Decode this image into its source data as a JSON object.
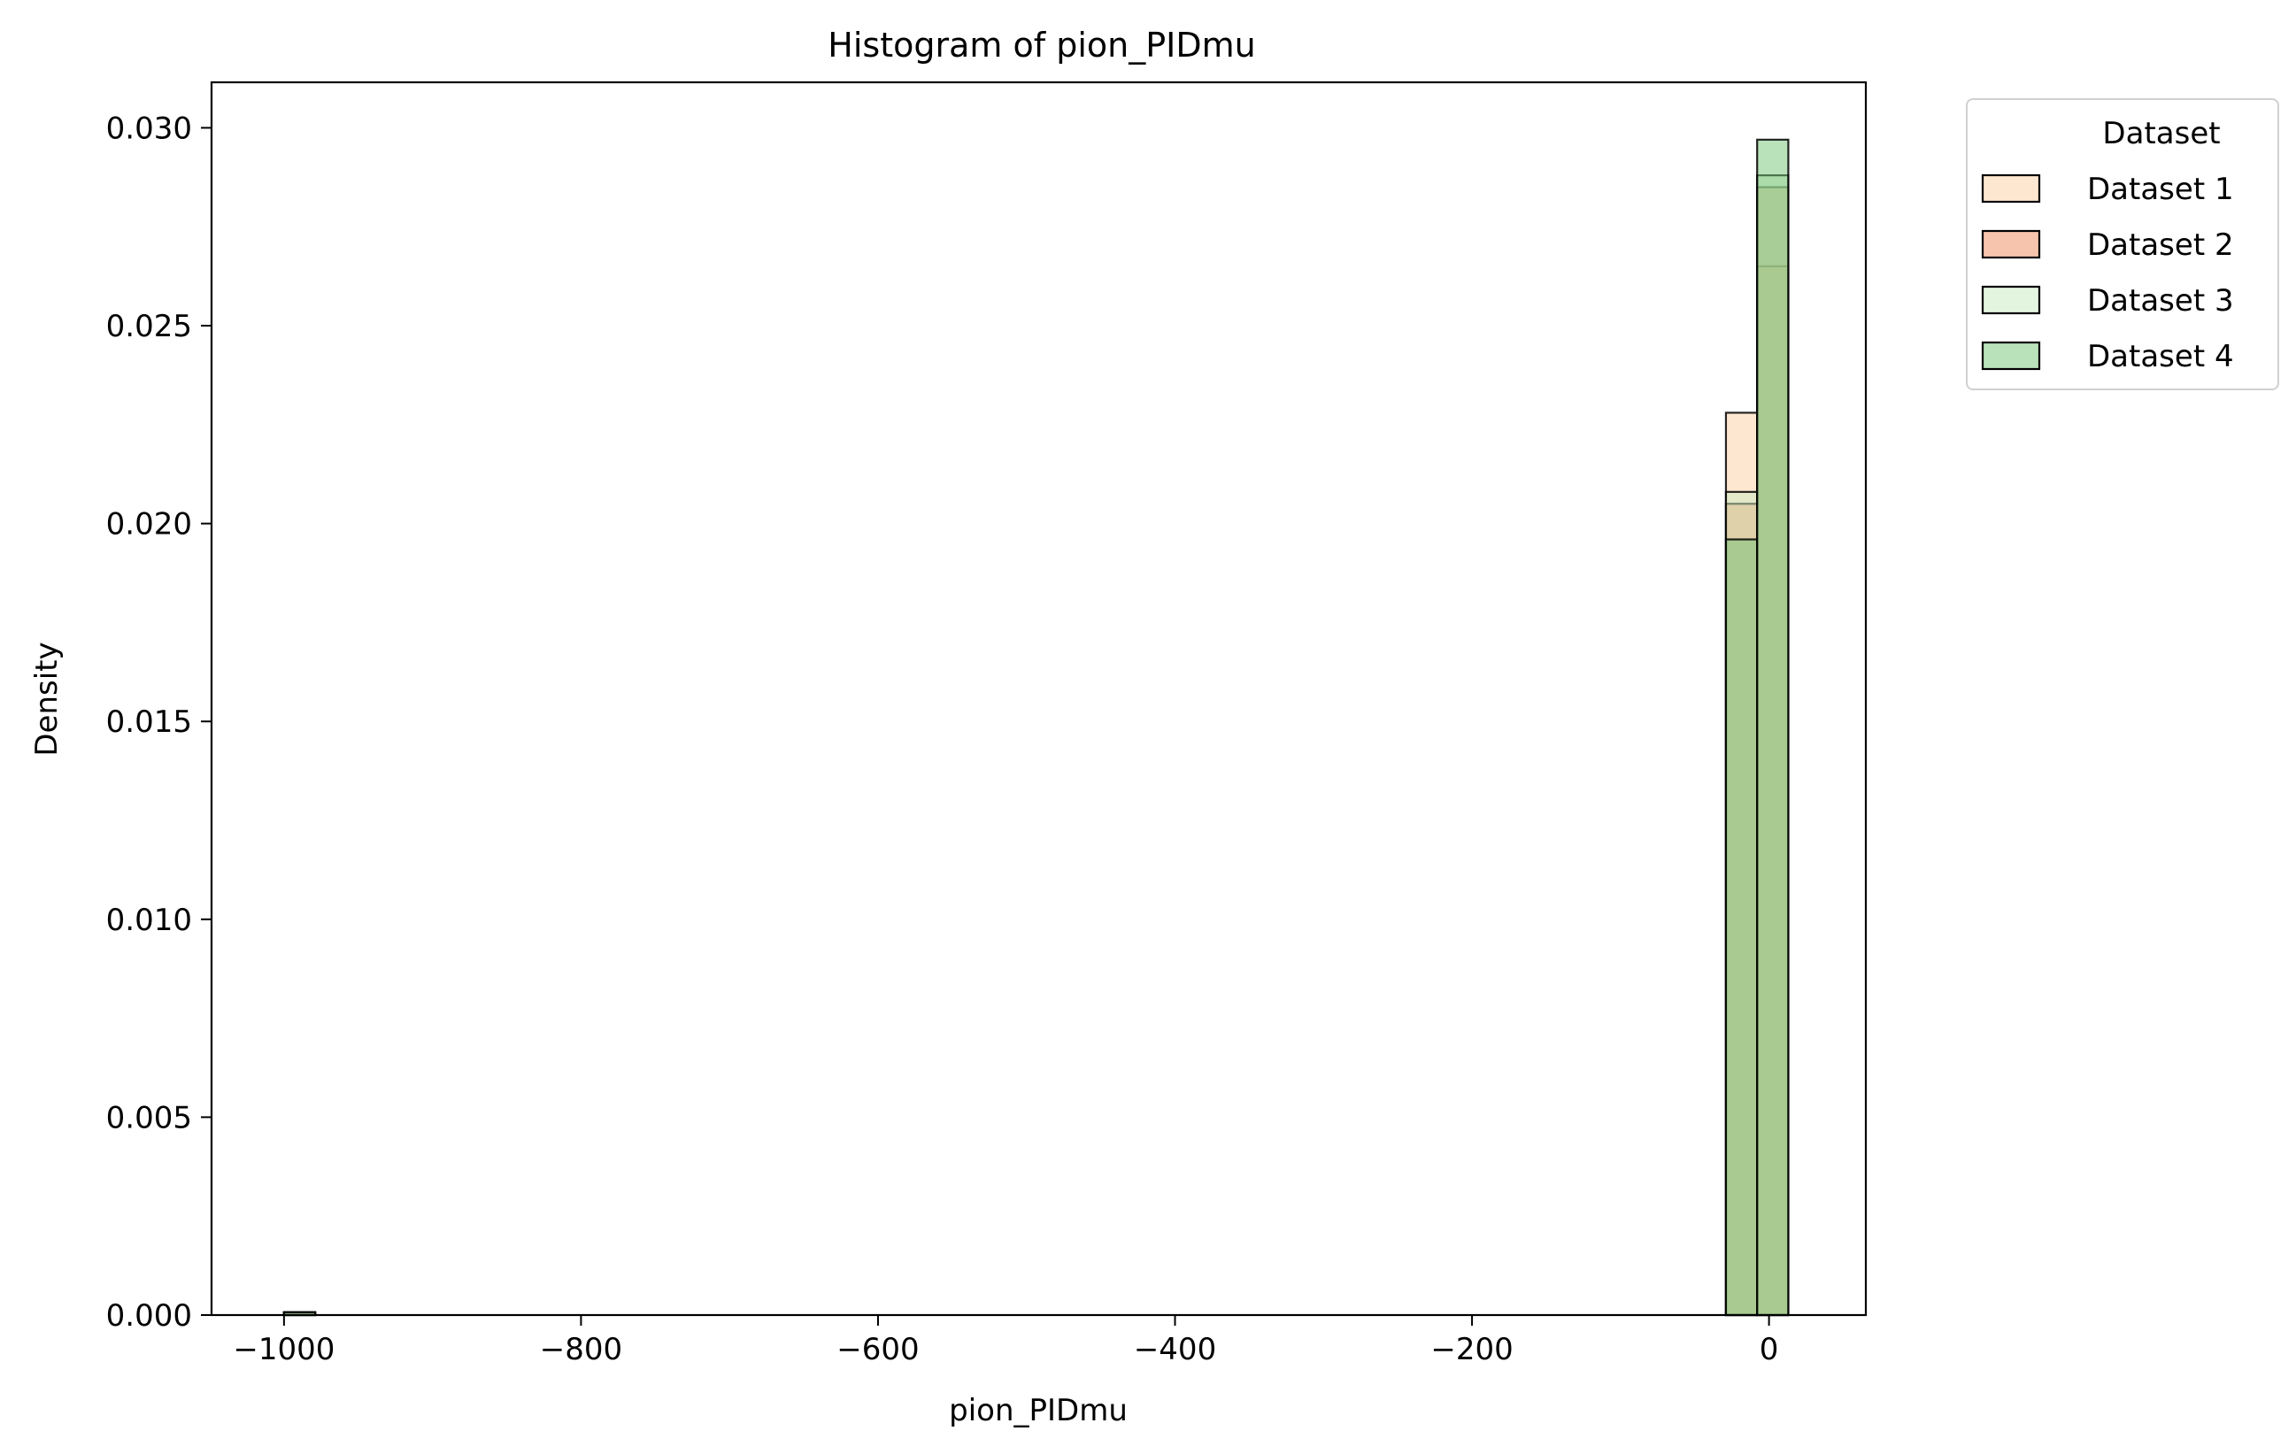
{
  "chart_data": {
    "type": "histogram",
    "title": "Histogram of pion_PIDmu",
    "xlabel": "pion_PIDmu",
    "ylabel": "Density",
    "xlim": [
      -1048.8,
      65.2
    ],
    "ylim": [
      0,
      0.03115
    ],
    "x_ticks": [
      {
        "value": -1000,
        "label": "−1000"
      },
      {
        "value": -800,
        "label": "−800"
      },
      {
        "value": -600,
        "label": "−600"
      },
      {
        "value": -400,
        "label": "−400"
      },
      {
        "value": -200,
        "label": "−200"
      },
      {
        "value": 0,
        "label": "0"
      }
    ],
    "y_ticks": [
      {
        "value": 0.0,
        "label": "0.000"
      },
      {
        "value": 0.005,
        "label": "0.005"
      },
      {
        "value": 0.01,
        "label": "0.010"
      },
      {
        "value": 0.015,
        "label": "0.015"
      },
      {
        "value": 0.02,
        "label": "0.020"
      },
      {
        "value": 0.025,
        "label": "0.025"
      },
      {
        "value": 0.03,
        "label": "0.030"
      }
    ],
    "grid": false,
    "legend": {
      "title": "Dataset",
      "placement": "outside right, top"
    },
    "series": [
      {
        "name": "Dataset 1",
        "color": "#fdd0a2",
        "bins": [
          {
            "x0": -1000,
            "x1": -979,
            "y": 7e-05
          },
          {
            "x0": -29,
            "x1": -8,
            "y": 0.0228
          },
          {
            "x0": -8,
            "x1": 13,
            "y": 0.0265
          }
        ]
      },
      {
        "name": "Dataset 2",
        "color": "#ee8a5a",
        "bins": [
          {
            "x0": -1000,
            "x1": -979,
            "y": 7e-05
          },
          {
            "x0": -29,
            "x1": -8,
            "y": 0.0205
          },
          {
            "x0": -8,
            "x1": 13,
            "y": 0.0285
          }
        ]
      },
      {
        "name": "Dataset 3",
        "color": "#c7e9c0",
        "bins": [
          {
            "x0": -1000,
            "x1": -979,
            "y": 7e-05
          },
          {
            "x0": -29,
            "x1": -8,
            "y": 0.0208
          },
          {
            "x0": -8,
            "x1": 13,
            "y": 0.0288
          }
        ]
      },
      {
        "name": "Dataset 4",
        "color": "#74c476",
        "bins": [
          {
            "x0": -1000,
            "x1": -979,
            "y": 7e-05
          },
          {
            "x0": -29,
            "x1": -8,
            "y": 0.0196
          },
          {
            "x0": -8,
            "x1": 13,
            "y": 0.0297
          }
        ]
      }
    ]
  }
}
